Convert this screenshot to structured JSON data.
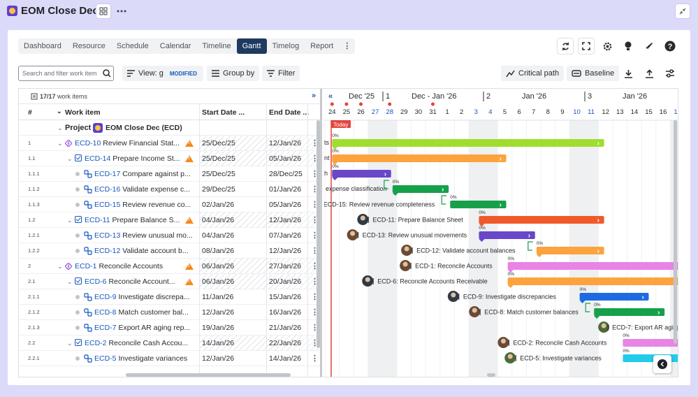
{
  "app": {
    "title": "EOM Close Dec"
  },
  "tabs": [
    "Dashboard",
    "Resource",
    "Schedule",
    "Calendar",
    "Timeline",
    "Gantt",
    "Timelog",
    "Report"
  ],
  "active_tab": "Gantt",
  "toolbar": {
    "search_placeholder": "Search and filter work item",
    "view_label": "View: g",
    "view_badge": "MODIFIED",
    "group_label": "Group by",
    "filter_label": "Filter",
    "critical_label": "Critical path",
    "baseline_label": "Baseline"
  },
  "table": {
    "count": "17/17",
    "count_suffix": "work items",
    "col_num": "#",
    "col_item": "Work item",
    "col_start": "Start Date ...",
    "col_end": "End Date ...",
    "project_label": "Project",
    "project_name": "EOM Close Dec (ECD)",
    "rows": [
      {
        "num": "1",
        "key": "ECD-10",
        "title": "Review Financial Stat...",
        "start": "25/Dec/25",
        "end": "12/Jan/26"
      },
      {
        "num": "1.1",
        "key": "ECD-14",
        "title": "Prepare Income St...",
        "start": "25/Dec/25",
        "end": "05/Jan/26"
      },
      {
        "num": "1.1.1",
        "key": "ECD-17",
        "title": "Compare against p...",
        "start": "25/Dec/25",
        "end": "28/Dec/25"
      },
      {
        "num": "1.1.2",
        "key": "ECD-16",
        "title": "Validate expense c...",
        "start": "29/Dec/25",
        "end": "01/Jan/26"
      },
      {
        "num": "1.1.3",
        "key": "ECD-15",
        "title": "Review revenue co...",
        "start": "02/Jan/26",
        "end": "05/Jan/26"
      },
      {
        "num": "1.2",
        "key": "ECD-11",
        "title": "Prepare Balance S...",
        "start": "04/Jan/26",
        "end": "12/Jan/26"
      },
      {
        "num": "1.2.1",
        "key": "ECD-13",
        "title": "Review unusual mo...",
        "start": "04/Jan/26",
        "end": "07/Jan/26"
      },
      {
        "num": "1.2.2",
        "key": "ECD-12",
        "title": "Validate account b...",
        "start": "08/Jan/26",
        "end": "12/Jan/26"
      },
      {
        "num": "2",
        "key": "ECD-1",
        "title": "Reconcile Accounts",
        "start": "06/Jan/26",
        "end": "27/Jan/26"
      },
      {
        "num": "2.1",
        "key": "ECD-6",
        "title": "Reconcile Account...",
        "start": "06/Jan/26",
        "end": "20/Jan/26"
      },
      {
        "num": "2.1.1",
        "key": "ECD-9",
        "title": "Investigate discrepa...",
        "start": "11/Jan/26",
        "end": "15/Jan/26"
      },
      {
        "num": "2.1.2",
        "key": "ECD-8",
        "title": "Match customer bal...",
        "start": "12/Jan/26",
        "end": "16/Jan/26"
      },
      {
        "num": "2.1.3",
        "key": "ECD-7",
        "title": "Export AR aging rep...",
        "start": "19/Jan/26",
        "end": "21/Jan/26"
      },
      {
        "num": "2.2",
        "key": "ECD-2",
        "title": "Reconcile Cash Accou...",
        "start": "14/Jan/26",
        "end": "22/Jan/26"
      },
      {
        "num": "2.2.1",
        "key": "ECD-5",
        "title": "Investigate variances",
        "start": "12/Jan/26",
        "end": "14/Jan/26"
      }
    ]
  },
  "timeline": {
    "today_label": "Today",
    "months": [
      {
        "label": "Dec '25"
      },
      {
        "label": "Dec - Jan '26"
      },
      {
        "label": "Jan '26"
      },
      {
        "label": "Jan '26"
      }
    ],
    "weeks": [
      "1",
      "2",
      "3"
    ],
    "days": [
      "24",
      "25",
      "26",
      "27",
      "28",
      "29",
      "30",
      "31",
      "1",
      "2",
      "3",
      "4",
      "5",
      "6",
      "7",
      "8",
      "9",
      "10",
      "11",
      "12",
      "13",
      "14",
      "15",
      "16",
      "17"
    ],
    "bar_labels": [
      "ts",
      "nt",
      "h",
      "expense classification",
      "ECD-15: Review revenue completeness",
      "ECD-11: Prepare Balance Sheet",
      "ECD-13: Review unusual movements",
      "ECD-12: Validate account balances",
      "ECD-1: Reconcile Accounts",
      "ECD-6: Reconcile Accounts Receivable",
      "ECD-9: Investigate discrepancies",
      "ECD-8: Match customer balances",
      "ECD-7: Export AR aging",
      "ECD-2: Reconcile Cash Accounts",
      "ECD-5: Investigate variances"
    ],
    "pct": "0%",
    "colors": {
      "green": "#9fde2e",
      "orange": "#fca33e",
      "purple": "#6a46c9",
      "darkgreen": "#16a04a",
      "teal": "#1fc490",
      "red": "#f1592a",
      "pink": "#e983e5",
      "blue": "#1e6ae3",
      "cyan": "#22cbe9"
    }
  }
}
